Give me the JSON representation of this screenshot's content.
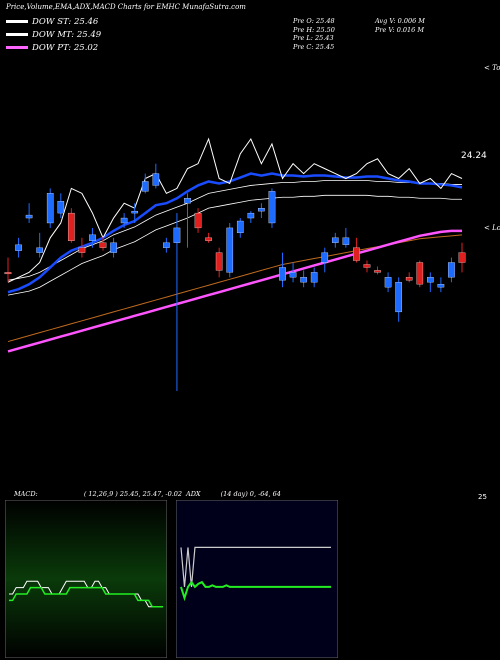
{
  "header": {
    "title": "Price,Volume,EMA,ADX,MACD Charts for EMHC MunafaSutra.com"
  },
  "legend": [
    {
      "label": "DOW ST: 25.46",
      "color": "#ffffff"
    },
    {
      "label": "DOW MT: 25.49",
      "color": "#ffffff"
    },
    {
      "label": "DOW PT: 25.02",
      "color": "#ff66ff"
    }
  ],
  "quote": {
    "pre_o": "Pre   O: 25.48",
    "pre_h": "Pre   H: 25.50",
    "pre_l": "Pre   L: 25.43",
    "pre_c": "Pre   C: 25.45",
    "avg_v": "Avg V: 0.006   M",
    "pre_v": "Pre   V: 0.016   M"
  },
  "price_labels": {
    "tops": "< Tops",
    "lows": "< Lows",
    "last": "24.24"
  },
  "macd_panel": {
    "label": "MACD:",
    "values": "( 12,26,9 ) 25.45,  25.47,  -0.02",
    "right_value": "25"
  },
  "adx_panel": {
    "label": "ADX",
    "values": "(14  day) 0,  -64,  64"
  },
  "chart_data": [
    {
      "type": "candlestick",
      "title": "Price,Volume,EMA,ADX,MACD Charts for EMHC MunafaSutra.com",
      "ylim": [
        22.6,
        26.8
      ],
      "series_names": [
        "DOW ST",
        "DOW MT",
        "DOW PT"
      ],
      "colors": {
        "up": "#1e6bff",
        "down": "#e0201e",
        "ema_short": "#1a4cff",
        "ema_long": "#ff55ff",
        "ema_mid": "#c06a1e"
      },
      "candles": [
        {
          "o": 24.6,
          "h": 24.75,
          "l": 24.5,
          "c": 24.6,
          "d": "down"
        },
        {
          "o": 24.82,
          "h": 24.95,
          "l": 24.75,
          "c": 24.88,
          "d": "up"
        },
        {
          "o": 25.15,
          "h": 25.3,
          "l": 25.1,
          "c": 25.18,
          "d": "up"
        },
        {
          "o": 24.8,
          "h": 25.0,
          "l": 24.75,
          "c": 24.85,
          "d": "up"
        },
        {
          "o": 25.1,
          "h": 25.45,
          "l": 25.05,
          "c": 25.4,
          "d": "up"
        },
        {
          "o": 25.2,
          "h": 25.4,
          "l": 25.15,
          "c": 25.32,
          "d": "up"
        },
        {
          "o": 25.2,
          "h": 25.25,
          "l": 24.9,
          "c": 24.92,
          "d": "down"
        },
        {
          "o": 24.85,
          "h": 24.95,
          "l": 24.75,
          "c": 24.8,
          "d": "down"
        },
        {
          "o": 24.92,
          "h": 25.05,
          "l": 24.85,
          "c": 24.98,
          "d": "up"
        },
        {
          "o": 24.9,
          "h": 24.96,
          "l": 24.82,
          "c": 24.85,
          "d": "down"
        },
        {
          "o": 24.8,
          "h": 24.95,
          "l": 24.75,
          "c": 24.9,
          "d": "up"
        },
        {
          "o": 25.1,
          "h": 25.2,
          "l": 25.05,
          "c": 25.15,
          "d": "up"
        },
        {
          "o": 25.2,
          "h": 25.3,
          "l": 25.1,
          "c": 25.22,
          "d": "up"
        },
        {
          "o": 25.42,
          "h": 25.6,
          "l": 25.4,
          "c": 25.52,
          "d": "up"
        },
        {
          "o": 25.6,
          "h": 25.7,
          "l": 25.45,
          "c": 25.48,
          "d": "up"
        },
        {
          "o": 24.85,
          "h": 24.95,
          "l": 24.8,
          "c": 24.9,
          "d": "up"
        },
        {
          "o": 24.9,
          "h": 25.2,
          "l": 23.4,
          "c": 25.05,
          "d": "up"
        },
        {
          "o": 25.3,
          "h": 25.4,
          "l": 24.85,
          "c": 25.35,
          "d": "up"
        },
        {
          "o": 25.2,
          "h": 25.25,
          "l": 25.0,
          "c": 25.05,
          "d": "down"
        },
        {
          "o": 24.95,
          "h": 25.0,
          "l": 24.9,
          "c": 24.92,
          "d": "down"
        },
        {
          "o": 24.8,
          "h": 24.85,
          "l": 24.55,
          "c": 24.62,
          "d": "down"
        },
        {
          "o": 24.6,
          "h": 25.1,
          "l": 24.55,
          "c": 25.05,
          "d": "up"
        },
        {
          "o": 25.0,
          "h": 25.15,
          "l": 24.95,
          "c": 25.12,
          "d": "up"
        },
        {
          "o": 25.2,
          "h": 25.22,
          "l": 25.1,
          "c": 25.15,
          "d": "up"
        },
        {
          "o": 25.25,
          "h": 25.3,
          "l": 25.15,
          "c": 25.22,
          "d": "up"
        },
        {
          "o": 25.1,
          "h": 25.45,
          "l": 25.05,
          "c": 25.42,
          "d": "up"
        },
        {
          "o": 24.65,
          "h": 24.8,
          "l": 24.45,
          "c": 24.52,
          "d": "up"
        },
        {
          "o": 24.55,
          "h": 24.7,
          "l": 24.5,
          "c": 24.6,
          "d": "up"
        },
        {
          "o": 24.55,
          "h": 24.62,
          "l": 24.45,
          "c": 24.5,
          "d": "up"
        },
        {
          "o": 24.5,
          "h": 24.65,
          "l": 24.45,
          "c": 24.6,
          "d": "up"
        },
        {
          "o": 24.7,
          "h": 24.85,
          "l": 24.6,
          "c": 24.8,
          "d": "up"
        },
        {
          "o": 24.9,
          "h": 25.0,
          "l": 24.85,
          "c": 24.95,
          "d": "up"
        },
        {
          "o": 24.95,
          "h": 25.05,
          "l": 24.85,
          "c": 24.88,
          "d": "up"
        },
        {
          "o": 24.85,
          "h": 24.95,
          "l": 24.7,
          "c": 24.72,
          "d": "down"
        },
        {
          "o": 24.68,
          "h": 24.72,
          "l": 24.6,
          "c": 24.65,
          "d": "down"
        },
        {
          "o": 24.62,
          "h": 24.66,
          "l": 24.58,
          "c": 24.6,
          "d": "down"
        },
        {
          "o": 24.55,
          "h": 24.6,
          "l": 24.4,
          "c": 24.45,
          "d": "up"
        },
        {
          "o": 24.2,
          "h": 24.55,
          "l": 24.1,
          "c": 24.5,
          "d": "up"
        },
        {
          "o": 24.55,
          "h": 24.6,
          "l": 24.5,
          "c": 24.52,
          "d": "down"
        },
        {
          "o": 24.7,
          "h": 24.72,
          "l": 24.45,
          "c": 24.48,
          "d": "down"
        },
        {
          "o": 24.5,
          "h": 24.6,
          "l": 24.4,
          "c": 24.55,
          "d": "up"
        },
        {
          "o": 24.48,
          "h": 24.55,
          "l": 24.4,
          "c": 24.45,
          "d": "up"
        },
        {
          "o": 24.55,
          "h": 24.75,
          "l": 24.5,
          "c": 24.7,
          "d": "up"
        },
        {
          "o": 24.8,
          "h": 24.9,
          "l": 24.6,
          "c": 24.7,
          "d": "down"
        }
      ],
      "high_line": [
        24.5,
        24.55,
        24.6,
        24.7,
        24.95,
        25.1,
        25.45,
        25.4,
        25.2,
        24.95,
        25.15,
        25.3,
        25.25,
        25.55,
        25.6,
        25.4,
        25.45,
        25.65,
        25.7,
        25.95,
        25.55,
        25.5,
        25.8,
        25.95,
        25.7,
        25.9,
        25.55,
        25.7,
        25.6,
        25.7,
        25.65,
        25.6,
        25.55,
        25.6,
        25.7,
        25.75,
        25.6,
        25.55,
        25.65,
        25.5,
        25.55,
        25.45,
        25.6,
        25.55
      ],
      "ema_st": [
        24.4,
        24.43,
        24.48,
        24.55,
        24.65,
        24.75,
        24.82,
        24.86,
        24.9,
        24.95,
        25.02,
        25.08,
        25.12,
        25.2,
        25.28,
        25.3,
        25.35,
        25.42,
        25.48,
        25.52,
        25.5,
        25.52,
        25.56,
        25.6,
        25.58,
        25.6,
        25.58,
        25.58,
        25.57,
        25.58,
        25.58,
        25.57,
        25.56,
        25.56,
        25.57,
        25.57,
        25.55,
        25.53,
        25.52,
        25.5,
        25.5,
        25.49,
        25.48,
        25.46
      ],
      "ema_mt": [
        24.52,
        24.54,
        24.56,
        24.6,
        24.66,
        24.72,
        24.78,
        24.84,
        24.88,
        24.92,
        24.98,
        25.02,
        25.06,
        25.12,
        25.18,
        25.22,
        25.26,
        25.3,
        25.35,
        25.4,
        25.42,
        25.44,
        25.46,
        25.48,
        25.49,
        25.5,
        25.51,
        25.51,
        25.52,
        25.52,
        25.53,
        25.53,
        25.53,
        25.53,
        25.53,
        25.52,
        25.52,
        25.51,
        25.51,
        25.5,
        25.5,
        25.5,
        25.49,
        25.49
      ],
      "ema_mid": [
        23.9,
        23.93,
        23.96,
        23.99,
        24.02,
        24.05,
        24.08,
        24.11,
        24.14,
        24.17,
        24.2,
        24.23,
        24.26,
        24.29,
        24.32,
        24.35,
        24.38,
        24.41,
        24.44,
        24.47,
        24.5,
        24.53,
        24.56,
        24.59,
        24.62,
        24.65,
        24.68,
        24.7,
        24.72,
        24.74,
        24.76,
        24.78,
        24.8,
        24.82,
        24.84,
        24.86,
        24.88,
        24.9,
        24.92,
        24.94,
        24.95,
        24.96,
        24.97,
        24.98
      ],
      "ema_pt": [
        23.8,
        23.83,
        23.86,
        23.89,
        23.92,
        23.95,
        23.98,
        24.01,
        24.04,
        24.07,
        24.1,
        24.13,
        24.16,
        24.19,
        24.22,
        24.25,
        24.28,
        24.31,
        24.34,
        24.37,
        24.4,
        24.43,
        24.46,
        24.49,
        24.52,
        24.55,
        24.58,
        24.61,
        24.64,
        24.67,
        24.7,
        24.73,
        24.76,
        24.79,
        24.82,
        24.85,
        24.88,
        24.91,
        24.94,
        24.97,
        24.99,
        25.01,
        25.02,
        25.02
      ]
    },
    {
      "type": "line",
      "title": "MACD",
      "series": [
        {
          "values": [
            0.1,
            0.1,
            0.11,
            0.11,
            0.11,
            0.12,
            0.12,
            0.12,
            0.12,
            0.11,
            0.11,
            0.11,
            0.1,
            0.1,
            0.1,
            0.11,
            0.12,
            0.12,
            0.12,
            0.12,
            0.12,
            0.12,
            0.11,
            0.11,
            0.12,
            0.12,
            0.11,
            0.11,
            0.1,
            0.1,
            0.1,
            0.1,
            0.1,
            0.1,
            0.1,
            0.1,
            0.1,
            0.09,
            0.09,
            0.08,
            0.08,
            0.08,
            0.08,
            0.08
          ]
        },
        {
          "values": [
            0.09,
            0.09,
            0.1,
            0.1,
            0.1,
            0.1,
            0.11,
            0.11,
            0.11,
            0.11,
            0.1,
            0.1,
            0.1,
            0.1,
            0.1,
            0.1,
            0.1,
            0.11,
            0.11,
            0.11,
            0.11,
            0.11,
            0.11,
            0.11,
            0.11,
            0.11,
            0.11,
            0.1,
            0.1,
            0.1,
            0.1,
            0.1,
            0.1,
            0.1,
            0.1,
            0.1,
            0.09,
            0.09,
            0.09,
            0.09,
            0.08,
            0.08,
            0.08,
            0.08
          ]
        }
      ]
    },
    {
      "type": "line",
      "title": "ADX",
      "series": [
        {
          "values": [
            0.3,
            0.55,
            0.3,
            0.55,
            0.3,
            0.3,
            0.3,
            0.3,
            0.3,
            0.3,
            0.3,
            0.3,
            0.3,
            0.3,
            0.3,
            0.3,
            0.3,
            0.3,
            0.3,
            0.3,
            0.3,
            0.3,
            0.3,
            0.3,
            0.3,
            0.3,
            0.3,
            0.3,
            0.3,
            0.3,
            0.3,
            0.3,
            0.3,
            0.3,
            0.3,
            0.3,
            0.3,
            0.3,
            0.3,
            0.3,
            0.3,
            0.3,
            0.3,
            0.3
          ]
        },
        {
          "values": [
            0.55,
            0.62,
            0.55,
            0.52,
            0.55,
            0.53,
            0.52,
            0.55,
            0.55,
            0.54,
            0.55,
            0.55,
            0.55,
            0.54,
            0.55,
            0.55,
            0.55,
            0.55,
            0.55,
            0.55,
            0.55,
            0.55,
            0.55,
            0.55,
            0.55,
            0.55,
            0.55,
            0.55,
            0.55,
            0.55,
            0.55,
            0.55,
            0.55,
            0.55,
            0.55,
            0.55,
            0.55,
            0.55,
            0.55,
            0.55,
            0.55,
            0.55,
            0.55,
            0.55
          ]
        }
      ]
    }
  ]
}
